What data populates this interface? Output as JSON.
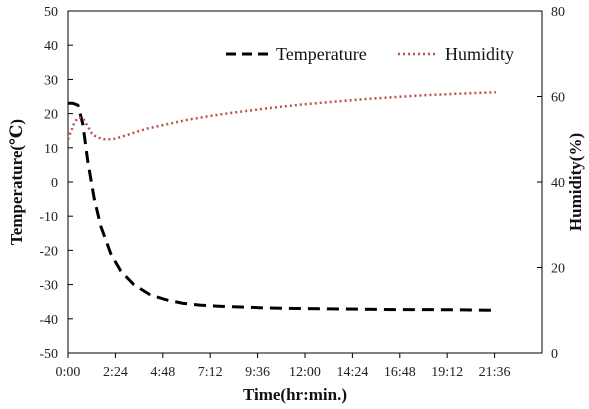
{
  "chart_data": {
    "type": "line",
    "title": "",
    "xlabel": "Time(hr:min.)",
    "ylabel": "Temperature(℃)",
    "y2label": "Humidity(%)",
    "x_ticks": [
      "0:00",
      "2:24",
      "4:48",
      "7:12",
      "9:36",
      "12:00",
      "14:24",
      "16:48",
      "19:12",
      "21:36"
    ],
    "x_unit": "minutes",
    "xlim": [
      0,
      1440
    ],
    "ylim": [
      -50,
      50
    ],
    "y_ticks": [
      50,
      40,
      30,
      20,
      10,
      0,
      -10,
      -20,
      -30,
      -40,
      -50
    ],
    "y2lim": [
      0,
      80
    ],
    "y2_ticks": [
      80,
      60,
      40,
      20,
      0
    ],
    "grid": false,
    "legend_position": "top-right",
    "series": [
      {
        "name": "Temperature",
        "axis": "left",
        "color": "#000000",
        "style": "dashed",
        "x": [
          0,
          15,
          30,
          45,
          60,
          80,
          100,
          130,
          160,
          200,
          250,
          300,
          350,
          400,
          450,
          500,
          600,
          700,
          800,
          900,
          1000,
          1100,
          1200,
          1300
        ],
        "y": [
          23,
          23,
          22.5,
          17,
          6,
          -5,
          -13,
          -21,
          -26,
          -30,
          -33,
          -34.5,
          -35.5,
          -36,
          -36.3,
          -36.5,
          -36.8,
          -37,
          -37.1,
          -37.2,
          -37.3,
          -37.3,
          -37.4,
          -37.5
        ]
      },
      {
        "name": "Humidity",
        "axis": "right",
        "color": "#c0504d",
        "style": "dotted",
        "x": [
          0,
          10,
          20,
          30,
          45,
          60,
          75,
          90,
          105,
          120,
          135,
          150,
          180,
          210,
          240,
          300,
          360,
          420,
          480,
          540,
          600,
          660,
          720,
          780,
          840,
          900,
          960,
          1020,
          1080,
          1140,
          1200,
          1260,
          1300
        ],
        "y": [
          50,
          52,
          54,
          55,
          55,
          53,
          51,
          50.5,
          50,
          50,
          50,
          50.3,
          51,
          51.8,
          52.5,
          53.5,
          54.5,
          55.3,
          56,
          56.6,
          57.2,
          57.7,
          58.2,
          58.6,
          59,
          59.4,
          59.7,
          60,
          60.3,
          60.5,
          60.7,
          60.9,
          61
        ]
      }
    ]
  }
}
